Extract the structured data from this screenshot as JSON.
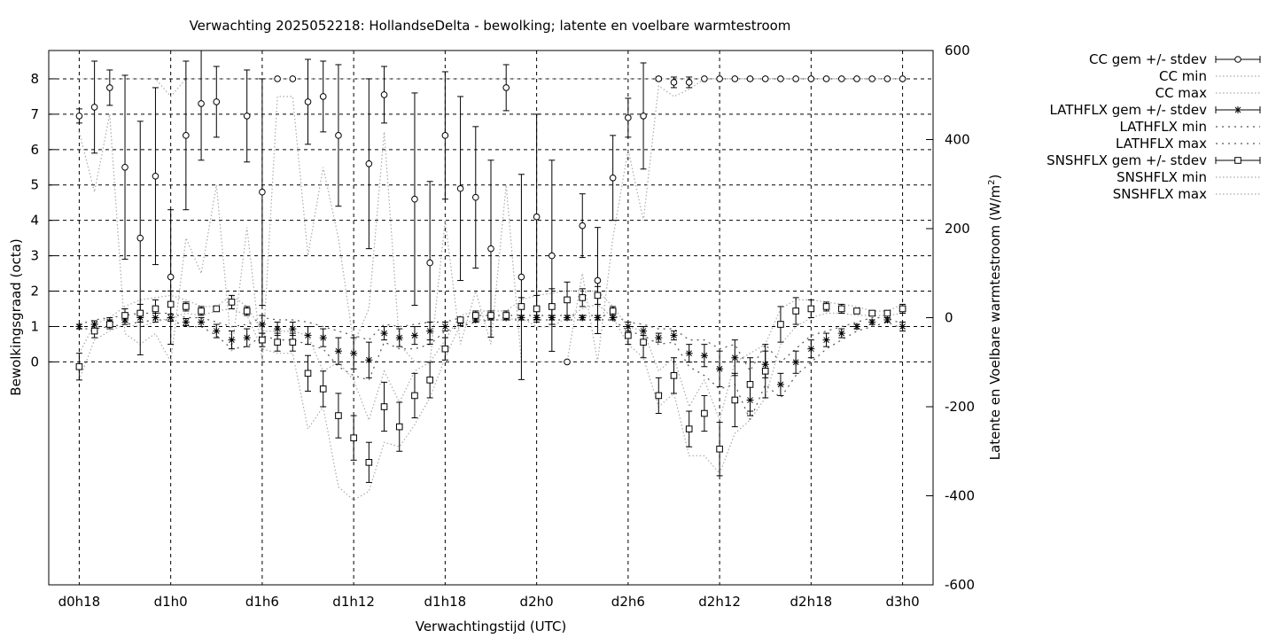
{
  "chart_data": {
    "type": "scatter",
    "title": "Verwachting 2025052218: HollandseDelta - bewolking; latente en voelbare warmtestroom",
    "xlabel": "Verwachtingstijd (UTC)",
    "ylabel": "Bewolkingsgraad (octa)",
    "y2label": "Latente en Voelbare warmtestroom (W/m²)",
    "y2label_parts": [
      "Latente en Voelbare warmtestroom (W/m",
      "2",
      ")"
    ],
    "x_tick_labels": [
      "d0h18",
      "d1h0",
      "d1h6",
      "d1h12",
      "d1h18",
      "d2h0",
      "d2h6",
      "d2h12",
      "d2h18",
      "d3h0"
    ],
    "x_tick_hours": [
      18,
      24,
      30,
      36,
      42,
      48,
      54,
      60,
      66,
      72
    ],
    "xlim": [
      16,
      74
    ],
    "x_unit": "hours since d0h0",
    "ylim": [
      -6.3,
      8.8
    ],
    "y_ticks": [
      0,
      1,
      2,
      3,
      4,
      5,
      6,
      7,
      8
    ],
    "y2lim": [
      -600,
      600
    ],
    "y2_ticks": [
      -600,
      -400,
      -200,
      0,
      200,
      400,
      600
    ],
    "grid": true,
    "legend_position": "outside-right",
    "legend": [
      "CC gem +/- stdev",
      "CC min",
      "CC max",
      "LATHFLX gem +/- stdev",
      "LATHFLX min",
      "LATHFLX max",
      "SNSHFLX gem +/- stdev",
      "SNSHFLX min",
      "SNSHFLX max"
    ],
    "x": [
      18,
      19,
      20,
      21,
      22,
      23,
      24,
      25,
      26,
      27,
      28,
      29,
      30,
      31,
      32,
      33,
      34,
      35,
      36,
      37,
      38,
      39,
      40,
      41,
      42,
      43,
      44,
      45,
      46,
      47,
      48,
      49,
      50,
      51,
      52,
      53,
      54,
      55,
      56,
      57,
      58,
      59,
      60,
      61,
      62,
      63,
      64,
      65,
      66,
      67,
      68,
      69,
      70,
      71,
      72
    ],
    "series": [
      {
        "name": "CC gem +/- stdev",
        "axis": "y",
        "marker": "circle",
        "mean": [
          6.95,
          7.2,
          7.75,
          5.5,
          3.5,
          5.25,
          2.4,
          6.4,
          7.3,
          7.35,
          null,
          6.95,
          4.8,
          8.0,
          8.0,
          7.35,
          7.5,
          6.4,
          null,
          5.6,
          7.55,
          null,
          4.6,
          2.8,
          6.4,
          4.9,
          4.65,
          3.2,
          7.75,
          2.4,
          4.1,
          3.0,
          0.0,
          3.85,
          2.3,
          5.2,
          6.9,
          6.95,
          8.0,
          7.9,
          7.9,
          8.0,
          8.0,
          8.0,
          8.0,
          8.0,
          8.0,
          8.0,
          8.0,
          8.0,
          8.0,
          8.0,
          8.0,
          8.0,
          8.0
        ],
        "stdev": [
          0.2,
          1.3,
          0.5,
          2.6,
          3.3,
          2.5,
          1.9,
          2.1,
          1.6,
          1.0,
          null,
          1.3,
          3.2,
          0.0,
          0.0,
          1.2,
          1.0,
          2.0,
          null,
          2.4,
          0.8,
          null,
          3.0,
          2.3,
          1.8,
          2.6,
          2.0,
          2.5,
          0.65,
          2.9,
          2.9,
          2.7,
          0.0,
          0.9,
          1.5,
          1.2,
          0.55,
          1.5,
          0.05,
          0.15,
          0.15,
          0.0,
          0.0,
          0.0,
          0.0,
          0.0,
          0.0,
          0.0,
          0.0,
          0.0,
          0.0,
          0.0,
          0.0,
          0.0,
          0.0
        ]
      },
      {
        "name": "CC min",
        "axis": "y",
        "style": "dotted",
        "values": [
          6.5,
          4.8,
          7.0,
          0.8,
          0.5,
          0.8,
          0.0,
          3.5,
          2.5,
          5.0,
          0.3,
          3.8,
          0.0,
          7.5,
          7.5,
          3.0,
          5.5,
          3.5,
          0.5,
          1.5,
          6.5,
          0.5,
          0.0,
          0.0,
          4.0,
          0.5,
          2.0,
          0.5,
          5.0,
          0.0,
          0.0,
          0.0,
          0.0,
          2.5,
          0.0,
          3.5,
          6.0,
          4.0,
          7.8,
          7.5,
          7.7,
          8.0,
          8.0,
          8.0,
          8.0,
          8.0,
          8.0,
          8.0,
          8.0,
          8.0,
          8.0,
          8.0,
          8.0,
          8.0,
          8.0
        ]
      },
      {
        "name": "CC max",
        "axis": "y",
        "style": "dotted",
        "values": [
          8.0,
          8.0,
          8.0,
          8.0,
          8.0,
          8.0,
          7.5,
          8.0,
          8.0,
          8.0,
          8.0,
          8.0,
          8.0,
          8.0,
          8.0,
          8.0,
          8.0,
          8.0,
          8.0,
          8.0,
          8.0,
          8.0,
          8.0,
          8.0,
          8.0,
          8.0,
          8.0,
          8.0,
          8.0,
          8.0,
          8.0,
          8.0,
          8.0,
          8.0,
          8.0,
          8.0,
          8.0,
          8.0,
          8.0,
          8.0,
          8.0,
          8.0,
          8.0,
          8.0,
          8.0,
          8.0,
          8.0,
          8.0,
          8.0,
          8.0,
          8.0,
          8.0,
          8.0,
          8.0,
          8.0
        ]
      },
      {
        "name": "LATHFLX gem +/- stdev",
        "axis": "y2",
        "marker": "star",
        "mean": [
          -20,
          -15,
          -10,
          -5,
          0,
          0,
          0,
          -10,
          -10,
          -30,
          -50,
          -45,
          -15,
          -25,
          -25,
          -40,
          -45,
          -75,
          -80,
          -95,
          -35,
          -45,
          -40,
          -30,
          -20,
          -10,
          -5,
          0,
          0,
          0,
          0,
          0,
          0,
          0,
          0,
          0,
          -20,
          -30,
          -45,
          -40,
          -80,
          -85,
          -115,
          -90,
          -185,
          -105,
          -150,
          -100,
          -70,
          -50,
          -35,
          -20,
          -10,
          -5,
          -20
        ],
        "stdev": [
          5,
          8,
          10,
          10,
          10,
          10,
          8,
          8,
          10,
          15,
          20,
          20,
          20,
          15,
          15,
          20,
          20,
          30,
          35,
          40,
          15,
          20,
          20,
          20,
          10,
          8,
          5,
          5,
          5,
          5,
          5,
          5,
          5,
          5,
          5,
          5,
          10,
          10,
          10,
          10,
          20,
          25,
          40,
          40,
          35,
          30,
          25,
          25,
          20,
          15,
          10,
          5,
          5,
          5,
          10
        ]
      },
      {
        "name": "LATHFLX min",
        "axis": "y2",
        "style": "dotted",
        "values": [
          -25,
          -25,
          -20,
          -15,
          -10,
          -5,
          -5,
          -20,
          -20,
          -40,
          -70,
          -65,
          -40,
          -50,
          -50,
          -60,
          -70,
          -110,
          -130,
          -140,
          -55,
          -70,
          -70,
          -60,
          -30,
          -20,
          -10,
          -5,
          -5,
          -5,
          -5,
          -5,
          -5,
          -5,
          -5,
          -5,
          -30,
          -40,
          -60,
          -55,
          -110,
          -130,
          -160,
          -150,
          -230,
          -150,
          -180,
          -130,
          -100,
          -70,
          -50,
          -30,
          -20,
          -10,
          -25
        ]
      },
      {
        "name": "LATHFLX max",
        "axis": "y2",
        "style": "dotted",
        "values": [
          -15,
          -5,
          0,
          5,
          10,
          10,
          10,
          0,
          0,
          -10,
          -20,
          -15,
          0,
          -5,
          -5,
          -10,
          -20,
          -30,
          -40,
          -50,
          -15,
          -20,
          -15,
          -10,
          -10,
          0,
          5,
          5,
          5,
          5,
          5,
          5,
          5,
          5,
          5,
          5,
          -10,
          -15,
          -25,
          -25,
          -50,
          -50,
          -70,
          -60,
          -120,
          -60,
          -100,
          -70,
          -40,
          -30,
          -20,
          -10,
          0,
          0,
          -15
        ]
      },
      {
        "name": "SNSHFLX gem +/- stdev",
        "axis": "y2",
        "marker": "square",
        "mean": [
          -110,
          -30,
          -15,
          5,
          10,
          20,
          30,
          25,
          15,
          20,
          35,
          15,
          -50,
          -55,
          -55,
          -125,
          -160,
          -220,
          -270,
          -325,
          -200,
          -245,
          -175,
          -140,
          -70,
          -5,
          5,
          5,
          5,
          25,
          20,
          25,
          40,
          45,
          50,
          15,
          -40,
          -55,
          -175,
          -130,
          -250,
          -215,
          -295,
          -185,
          -150,
          -120,
          -15,
          15,
          20,
          25,
          20,
          15,
          10,
          10,
          20
        ],
        "stdev": [
          30,
          15,
          10,
          15,
          20,
          20,
          30,
          10,
          10,
          5,
          15,
          10,
          15,
          20,
          20,
          40,
          40,
          50,
          50,
          45,
          55,
          55,
          50,
          40,
          25,
          5,
          10,
          10,
          10,
          20,
          30,
          40,
          40,
          20,
          20,
          10,
          20,
          35,
          40,
          40,
          40,
          40,
          60,
          60,
          60,
          60,
          40,
          30,
          20,
          10,
          10,
          5,
          5,
          5,
          10
        ]
      },
      {
        "name": "SNSHFLX min",
        "axis": "y2",
        "style": "dotted",
        "values": [
          -140,
          -50,
          -30,
          -15,
          -20,
          -10,
          0,
          10,
          5,
          15,
          20,
          5,
          -70,
          -80,
          -80,
          -250,
          -200,
          -380,
          -410,
          -390,
          -280,
          -290,
          -240,
          -180,
          -90,
          -15,
          -5,
          -5,
          -5,
          0,
          -20,
          -20,
          0,
          20,
          30,
          0,
          -60,
          -90,
          -200,
          -170,
          -310,
          -310,
          -350,
          -260,
          -230,
          -180,
          -60,
          -20,
          0,
          10,
          10,
          5,
          5,
          5,
          10
        ]
      },
      {
        "name": "SNSHFLX max",
        "axis": "y2",
        "style": "dotted",
        "values": [
          -80,
          -15,
          0,
          25,
          40,
          45,
          50,
          40,
          25,
          25,
          50,
          25,
          -30,
          -30,
          -30,
          -40,
          -120,
          -100,
          -140,
          -230,
          -120,
          -190,
          -120,
          -100,
          -50,
          5,
          15,
          15,
          15,
          40,
          50,
          55,
          60,
          60,
          60,
          25,
          -20,
          -30,
          -120,
          -90,
          -200,
          -140,
          -230,
          -100,
          -80,
          -60,
          20,
          40,
          40,
          35,
          30,
          25,
          15,
          15,
          30
        ]
      }
    ]
  }
}
